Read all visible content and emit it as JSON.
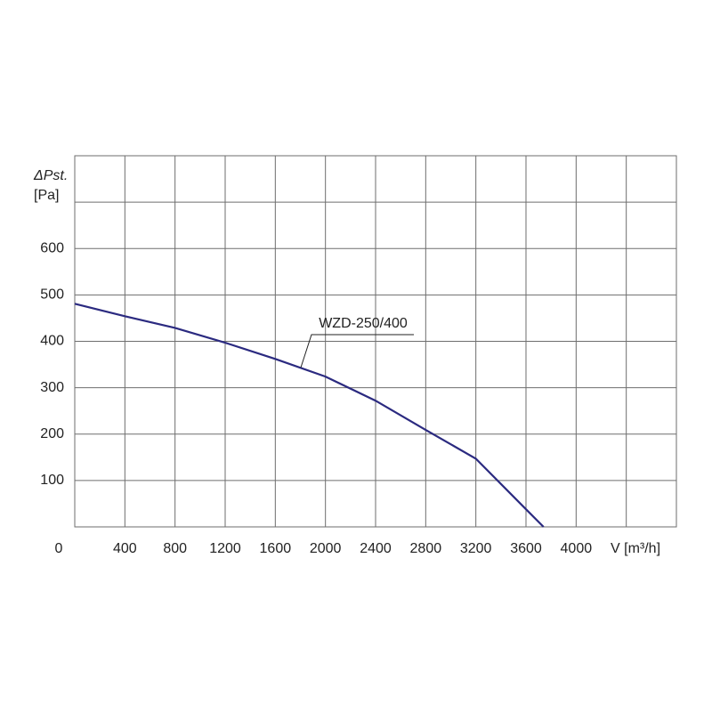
{
  "chart_data": {
    "type": "line",
    "y_axis_label": "ΔPst.",
    "y_axis_unit": "[Pa]",
    "x_axis_label": "V [m³/h]",
    "x": [
      0,
      400,
      800,
      1200,
      1600,
      2000,
      2400,
      2800,
      3200,
      3600,
      3740
    ],
    "series": [
      {
        "name": "WZD-250/400",
        "color": "#2b2a80",
        "values": [
          481,
          454,
          429,
          397,
          362,
          324,
          272,
          209,
          147,
          38,
          0
        ]
      }
    ],
    "xlim": [
      0,
      4800
    ],
    "xticks": [
      0,
      400,
      800,
      1200,
      1600,
      2000,
      2400,
      2800,
      3200,
      3600,
      4000,
      {
        "value": 4400,
        "label": null
      }
    ],
    "ylim": [
      0,
      800
    ],
    "yticks": [
      100,
      200,
      300,
      400,
      500,
      600,
      {
        "value": 700,
        "label": null
      }
    ],
    "grid": true
  }
}
